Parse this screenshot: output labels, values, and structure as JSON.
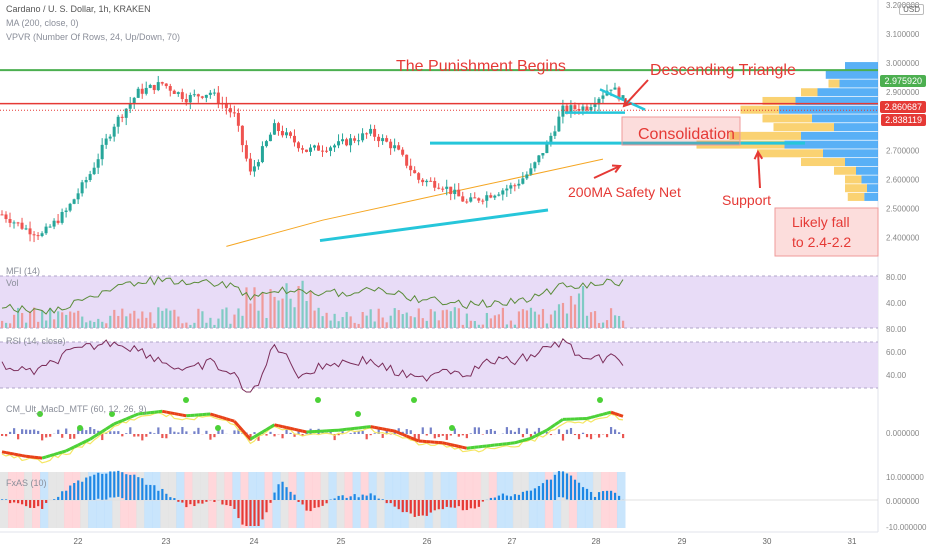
{
  "header": {
    "symbol": "Cardano / U. S. Dollar, 1h, KRAKEN",
    "ma": "MA (200, close, 0)",
    "vpvr": "VPVR (Number Of Rows, 24, Up/Down, 70)",
    "currency": "USD"
  },
  "annotations": {
    "title": "The Punishment Begins",
    "triangle": "Descending Triangle",
    "consolidation": "Consolidation",
    "safety": "200MA Safety Net",
    "support": "Support",
    "likely1": "Likely fall",
    "likely2": "to 2.4-2.2"
  },
  "price_badges": {
    "green": {
      "text": "2.975920",
      "color": "#4caf50"
    },
    "red1": {
      "text": "2.860687",
      "color": "#e53935"
    },
    "red2": {
      "text": "2.838119",
      "color": "#e53935"
    }
  },
  "indicators": {
    "mfi": "MFI (14)",
    "vol": "Vol",
    "rsi": "RSI (14, close)",
    "macd": "CM_Ult_MacD_MTF (60, 12, 26, 9)",
    "fish": "FxAS (10)"
  },
  "colors": {
    "up": "#26a69a",
    "down": "#ef5350",
    "resistance_green": "#4caf50",
    "resistance_red": "#e53935",
    "trendline": "#26c6da",
    "ma": "#f5a623",
    "band": "#e8dcf7",
    "bg": "#ffffff"
  },
  "chart_data": {
    "type": "candlestick",
    "x_ticks": [
      "22",
      "23",
      "24",
      "25",
      "26",
      "27",
      "28",
      "29",
      "30",
      "31"
    ],
    "y_ticks": [
      "3.200000",
      "3.100000",
      "3.000000",
      "2.900000",
      "2.800000",
      "2.700000",
      "2.600000",
      "2.500000",
      "2.400000"
    ],
    "ylim": [
      2.33,
      3.2
    ],
    "levels": {
      "green_resistance": 2.97592,
      "red_resistance": 2.860687,
      "red_close": 2.838119,
      "support": 2.725
    },
    "price_path": [
      [
        0,
        2.48
      ],
      [
        6,
        2.43
      ],
      [
        10,
        2.41
      ],
      [
        16,
        2.49
      ],
      [
        22,
        2.62
      ],
      [
        28,
        2.79
      ],
      [
        34,
        2.9
      ],
      [
        40,
        2.93
      ],
      [
        46,
        2.88
      ],
      [
        52,
        2.9
      ],
      [
        58,
        2.82
      ],
      [
        62,
        2.62
      ],
      [
        68,
        2.78
      ],
      [
        76,
        2.7
      ],
      [
        84,
        2.72
      ],
      [
        92,
        2.76
      ],
      [
        98,
        2.71
      ],
      [
        104,
        2.6
      ],
      [
        110,
        2.58
      ],
      [
        116,
        2.52
      ],
      [
        122,
        2.55
      ],
      [
        128,
        2.58
      ],
      [
        132,
        2.63
      ],
      [
        136,
        2.72
      ],
      [
        140,
        2.84
      ],
      [
        146,
        2.85
      ],
      [
        152,
        2.92
      ],
      [
        156,
        2.86
      ]
    ],
    "ma200": [
      [
        56,
        2.37
      ],
      [
        80,
        2.46
      ],
      [
        100,
        2.52
      ],
      [
        120,
        2.58
      ],
      [
        140,
        2.64
      ],
      [
        150,
        2.67
      ]
    ],
    "mfi_axis": [
      "80.00",
      "40.00"
    ],
    "rsi_axis": [
      "80.00",
      "60.00",
      "40.00"
    ],
    "macd_axis": [
      "0.000000"
    ],
    "fish_axis": [
      "10.000000",
      "0.000000",
      "-10.000000"
    ]
  }
}
